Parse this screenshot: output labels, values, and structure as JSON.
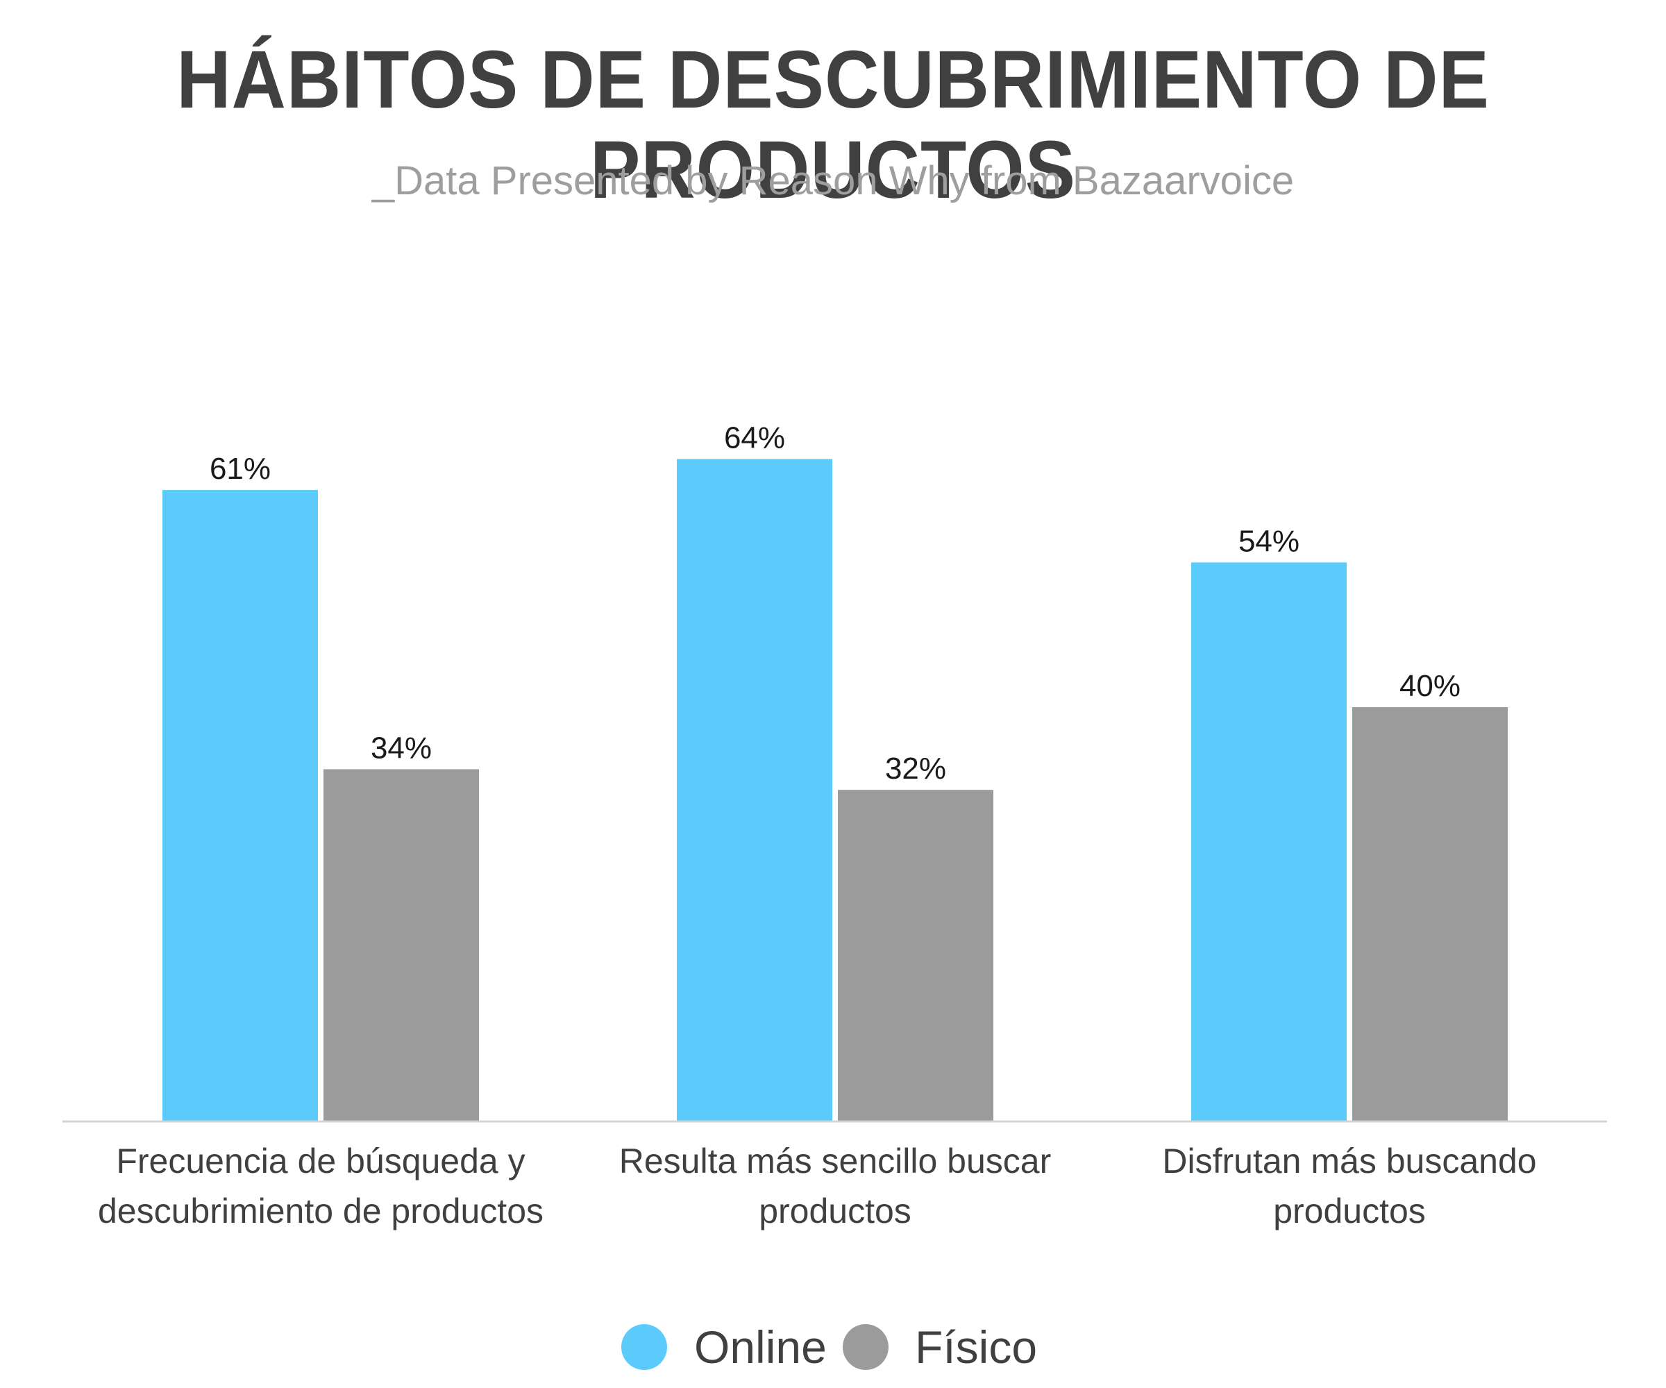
{
  "chart_data": {
    "type": "bar",
    "title": "HÁBITOS DE DESCUBRIMIENTO DE PRODUCTOS",
    "subtitle": "_Data Presented by Reason Why from Bazaarvoice",
    "categories": [
      [
        "Frecuencia de búsqueda y",
        "descubrimiento de productos"
      ],
      [
        "Resulta más sencillo buscar",
        "productos"
      ],
      [
        "Disfrutan más buscando",
        "productos"
      ]
    ],
    "series": [
      {
        "name": "Online",
        "color": "#5bcbfb",
        "values": [
          61,
          64,
          54
        ],
        "labels": [
          "61%",
          "64%",
          "54%"
        ]
      },
      {
        "name": "Físico",
        "color": "#9b9b9b",
        "values": [
          34,
          32,
          40
        ],
        "labels": [
          "34%",
          "32%",
          "40%"
        ]
      }
    ],
    "ylim": [
      0,
      100
    ],
    "grid": false,
    "legend": "bottom"
  }
}
